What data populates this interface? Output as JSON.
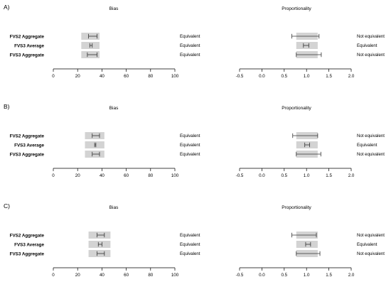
{
  "chart_data": [
    {
      "type": "interval",
      "panel_label": "A)",
      "rows": [
        "FVS2 Aggregate",
        "FVS3 Average",
        "FVS3 Aggregate"
      ],
      "bias": {
        "title": "Bias",
        "xlim": [
          0,
          100
        ],
        "ticks": [
          "0",
          "20",
          "40",
          "60",
          "80",
          "100"
        ],
        "tick_values": [
          0,
          20,
          40,
          60,
          80,
          100
        ],
        "region": [
          23,
          38
        ],
        "ci": [
          [
            29,
            36
          ],
          [
            30,
            32
          ],
          [
            28,
            36
          ]
        ],
        "verdicts": [
          "Equivalent",
          "Equivalent",
          "Equivalent"
        ]
      },
      "proportionality": {
        "title": "Proportionality",
        "xlim": [
          -0.5,
          2.0
        ],
        "ticks": [
          "-0.5",
          "0.0",
          "0.5",
          "1.0",
          "1.5",
          "2.0"
        ],
        "tick_values": [
          -0.5,
          0.0,
          0.5,
          1.0,
          1.5,
          2.0
        ],
        "region": [
          0.77,
          1.25
        ],
        "ci": [
          [
            0.67,
            1.28
          ],
          [
            0.93,
            1.05
          ],
          [
            0.77,
            1.33
          ]
        ],
        "verdicts": [
          "Not equivalent",
          "Equivalent",
          "Not equivalent"
        ]
      }
    },
    {
      "type": "interval",
      "panel_label": "B)",
      "rows": [
        "FVS2 Aggregate",
        "FVS3 Average",
        "FVS3 Aggregate"
      ],
      "bias": {
        "title": "Bias",
        "xlim": [
          0,
          100
        ],
        "ticks": [
          "0",
          "20",
          "40",
          "60",
          "80",
          "100"
        ],
        "tick_values": [
          0,
          20,
          40,
          60,
          80,
          100
        ],
        "region": [
          26,
          42
        ],
        "ci": [
          [
            32,
            38
          ],
          [
            34,
            35
          ],
          [
            32,
            38
          ]
        ],
        "verdicts": [
          "Equivalent",
          "Equivalent",
          "Equivalent"
        ]
      },
      "proportionality": {
        "title": "Proportionality",
        "xlim": [
          -0.5,
          2.0
        ],
        "ticks": [
          "-0.5",
          "0.0",
          "0.5",
          "1.0",
          "1.5",
          "2.0"
        ],
        "tick_values": [
          -0.5,
          0.0,
          0.5,
          1.0,
          1.5,
          2.0
        ],
        "region": [
          0.77,
          1.25
        ],
        "ci": [
          [
            0.69,
            1.25
          ],
          [
            0.96,
            1.07
          ],
          [
            0.77,
            1.32
          ]
        ],
        "verdicts": [
          "Not equivalent",
          "Equivalent",
          "Not equivalent"
        ]
      }
    },
    {
      "type": "interval",
      "panel_label": "C)",
      "rows": [
        "FVS2 Aggregate",
        "FVS3 Average",
        "FVS3 Aggregate"
      ],
      "bias": {
        "title": "Bias",
        "xlim": [
          0,
          100
        ],
        "ticks": [
          "0",
          "20",
          "40",
          "60",
          "80",
          "100"
        ],
        "tick_values": [
          0,
          20,
          40,
          60,
          80,
          100
        ],
        "region": [
          29,
          47
        ],
        "ci": [
          [
            36,
            42
          ],
          [
            37,
            40
          ],
          [
            36,
            42
          ]
        ],
        "verdicts": [
          "Equivalent",
          "Equivalent",
          "Equivalent"
        ]
      },
      "proportionality": {
        "title": "Proportionality",
        "xlim": [
          -0.5,
          2.0
        ],
        "ticks": [
          "-0.5",
          "0.0",
          "0.5",
          "1.0",
          "1.5",
          "2.0"
        ],
        "tick_values": [
          -0.5,
          0.0,
          0.5,
          1.0,
          1.5,
          2.0
        ],
        "region": [
          0.77,
          1.25
        ],
        "ci": [
          [
            0.67,
            1.22
          ],
          [
            0.98,
            1.09
          ],
          [
            0.77,
            1.3
          ]
        ],
        "verdicts": [
          "Not equivalent",
          "Equivalent",
          "Not equivalent"
        ]
      }
    }
  ],
  "colors": {
    "equivalence_region": "#d3d3d3",
    "interval": "#333333",
    "axis": "#000000",
    "text": "#000000"
  }
}
